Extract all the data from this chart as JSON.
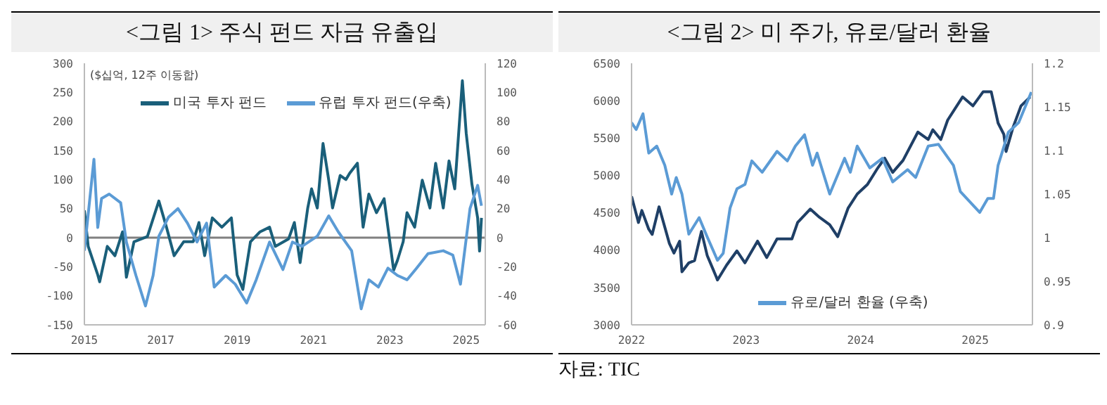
{
  "chart_data": [
    {
      "type": "line",
      "title": "<그림 1> 주식 펀드 자금 유출입",
      "ylabel": "($십억, 12주 이동합)",
      "xlim": [
        2015,
        2025.5
      ],
      "xticks": [
        2015,
        2017,
        2019,
        2021,
        2023,
        2025
      ],
      "ylim": [
        -150,
        300
      ],
      "yticks": [
        -150,
        -100,
        -50,
        0,
        50,
        100,
        150,
        200,
        250,
        300
      ],
      "y2lim": [
        -60,
        120
      ],
      "y2ticks": [
        -60,
        -40,
        -20,
        0,
        20,
        40,
        60,
        80,
        100,
        120
      ],
      "legend": "top",
      "grid": false,
      "ref_lines": [
        {
          "axis": "y",
          "value": 0,
          "color": "#808080"
        }
      ],
      "series": [
        {
          "name": "미국 투자 펀드",
          "color": "#1a5f7a",
          "x": [
            2015,
            2015.1,
            2015.35,
            2015.4,
            2015.6,
            2015.8,
            2016,
            2016.1,
            2016.3,
            2016.65,
            2016.95,
            2017.15,
            2017.35,
            2017.6,
            2017.85,
            2018,
            2018.15,
            2018.35,
            2018.6,
            2018.85,
            2019,
            2019.15,
            2019.35,
            2019.6,
            2019.85,
            2020,
            2020.35,
            2020.5,
            2020.65,
            2020.85,
            2020.95,
            2021.1,
            2021.25,
            2021.4,
            2021.5,
            2021.7,
            2021.85,
            2021.95,
            2022.15,
            2022.3,
            2022.45,
            2022.65,
            2022.85,
            2023,
            2023.1,
            2023.2,
            2023.35,
            2023.45,
            2023.65,
            2023.85,
            2024.05,
            2024.2,
            2024.4,
            2024.55,
            2024.7,
            2024.9,
            2025,
            2025.15,
            2025.3,
            2025.35,
            2025.4
          ],
          "values": [
            47,
            -15,
            -64,
            -76,
            -15,
            -31,
            10,
            -68,
            -7,
            2,
            63,
            18,
            -31,
            -7,
            -7,
            26,
            -31,
            34,
            18,
            34,
            -64,
            -89,
            -7,
            10,
            18,
            -15,
            -2,
            26,
            -43,
            51,
            84,
            51,
            162,
            99,
            51,
            107,
            100,
            111,
            128,
            18,
            75,
            43,
            67,
            -7,
            -56,
            -39,
            -7,
            43,
            18,
            99,
            51,
            128,
            51,
            132,
            84,
            270,
            180,
            92,
            34,
            -23,
            34
          ]
        },
        {
          "name": "유럽 투자 펀드(우축)",
          "color": "#5b9bd5",
          "axis": "y2",
          "x": [
            2015,
            2015.25,
            2015.35,
            2015.45,
            2015.65,
            2015.95,
            2016.1,
            2016.35,
            2016.6,
            2016.8,
            2016.95,
            2017.2,
            2017.45,
            2017.7,
            2017.95,
            2018.2,
            2018.4,
            2018.7,
            2018.95,
            2019.25,
            2019.5,
            2019.85,
            2020.2,
            2020.45,
            2020.7,
            2021.1,
            2021.4,
            2021.65,
            2022,
            2022.25,
            2022.45,
            2022.7,
            2022.95,
            2023.2,
            2023.45,
            2023.7,
            2024,
            2024.4,
            2024.65,
            2024.85,
            2025.1,
            2025.3,
            2025.4
          ],
          "values": [
            -9,
            54,
            7,
            27,
            30,
            24,
            -3,
            -26,
            -47,
            -26,
            1,
            14,
            20,
            10,
            -3,
            10,
            -34,
            -26,
            -32,
            -45,
            -29,
            -3,
            -22,
            -3,
            -6,
            1,
            15,
            4,
            -9,
            -49,
            -29,
            -34,
            -21,
            -26,
            -29,
            -21,
            -11,
            -9,
            -12,
            -32,
            20,
            36,
            22
          ]
        }
      ]
    },
    {
      "type": "line",
      "title": "<그림 2>  미 주가, 유로/달러 환율",
      "xlim": [
        2022,
        2025.5
      ],
      "xticks": [
        2022,
        2023,
        2024,
        2025
      ],
      "ylim": [
        3000,
        6500
      ],
      "yticks": [
        3000,
        3500,
        4000,
        4500,
        5000,
        5500,
        6000,
        6500
      ],
      "y2lim": [
        0.9,
        1.2
      ],
      "y2ticks": [
        0.9,
        0.95,
        1,
        1.05,
        1.1,
        1.15,
        1.2
      ],
      "legend": "bottom",
      "grid": false,
      "annotations": [
        "자료: TIC"
      ],
      "series": [
        {
          "color": "#1f3f66",
          "x": [
            2022,
            2022.06,
            2022.09,
            2022.15,
            2022.18,
            2022.24,
            2022.33,
            2022.37,
            2022.42,
            2022.44,
            2022.5,
            2022.55,
            2022.61,
            2022.66,
            2022.74,
            2022.75,
            2022.83,
            2022.92,
            2022.99,
            2023.1,
            2023.18,
            2023.27,
            2023.4,
            2023.45,
            2023.56,
            2023.64,
            2023.73,
            2023.8,
            2023.89,
            2023.97,
            2024.06,
            2024.15,
            2024.21,
            2024.28,
            2024.37,
            2024.5,
            2024.59,
            2024.63,
            2024.7,
            2024.76,
            2024.89,
            2024.98,
            2025.07,
            2025.14,
            2025.2,
            2025.25,
            2025.27,
            2025.33,
            2025.4,
            2025.48
          ],
          "values": [
            4720,
            4370,
            4530,
            4280,
            4210,
            4580,
            4090,
            3960,
            4120,
            3710,
            3830,
            3860,
            4250,
            3930,
            3640,
            3600,
            3800,
            3990,
            3830,
            4120,
            3900,
            4150,
            4150,
            4370,
            4550,
            4440,
            4340,
            4180,
            4560,
            4750,
            4880,
            5100,
            5230,
            5040,
            5200,
            5580,
            5480,
            5610,
            5480,
            5740,
            6050,
            5930,
            6120,
            6120,
            5700,
            5550,
            5320,
            5640,
            5930,
            6050
          ]
        },
        {
          "name": "유로/달러 환율 (우축)",
          "color": "#5b9bd5",
          "axis": "y2",
          "x": [
            2022,
            2022.04,
            2022.1,
            2022.15,
            2022.22,
            2022.29,
            2022.35,
            2022.39,
            2022.44,
            2022.5,
            2022.59,
            2022.66,
            2022.75,
            2022.8,
            2022.86,
            2022.92,
            2022.99,
            2023.05,
            2023.14,
            2023.27,
            2023.36,
            2023.43,
            2023.51,
            2023.58,
            2023.62,
            2023.73,
            2023.86,
            2023.91,
            2023.97,
            2024.08,
            2024.19,
            2024.28,
            2024.41,
            2024.48,
            2024.59,
            2024.68,
            2024.81,
            2024.87,
            2025.04,
            2025.11,
            2025.16,
            2025.2,
            2025.29,
            2025.38,
            2025.49
          ],
          "values": [
            1.132,
            1.124,
            1.142,
            1.097,
            1.105,
            1.083,
            1.05,
            1.069,
            1.05,
            1.004,
            1.023,
            1.001,
            0.974,
            0.982,
            1.034,
            1.056,
            1.061,
            1.088,
            1.075,
            1.099,
            1.088,
            1.105,
            1.118,
            1.083,
            1.097,
            1.05,
            1.091,
            1.075,
            1.105,
            1.08,
            1.091,
            1.064,
            1.078,
            1.069,
            1.105,
            1.107,
            1.083,
            1.053,
            1.029,
            1.045,
            1.045,
            1.083,
            1.121,
            1.132,
            1.167
          ]
        }
      ]
    }
  ]
}
